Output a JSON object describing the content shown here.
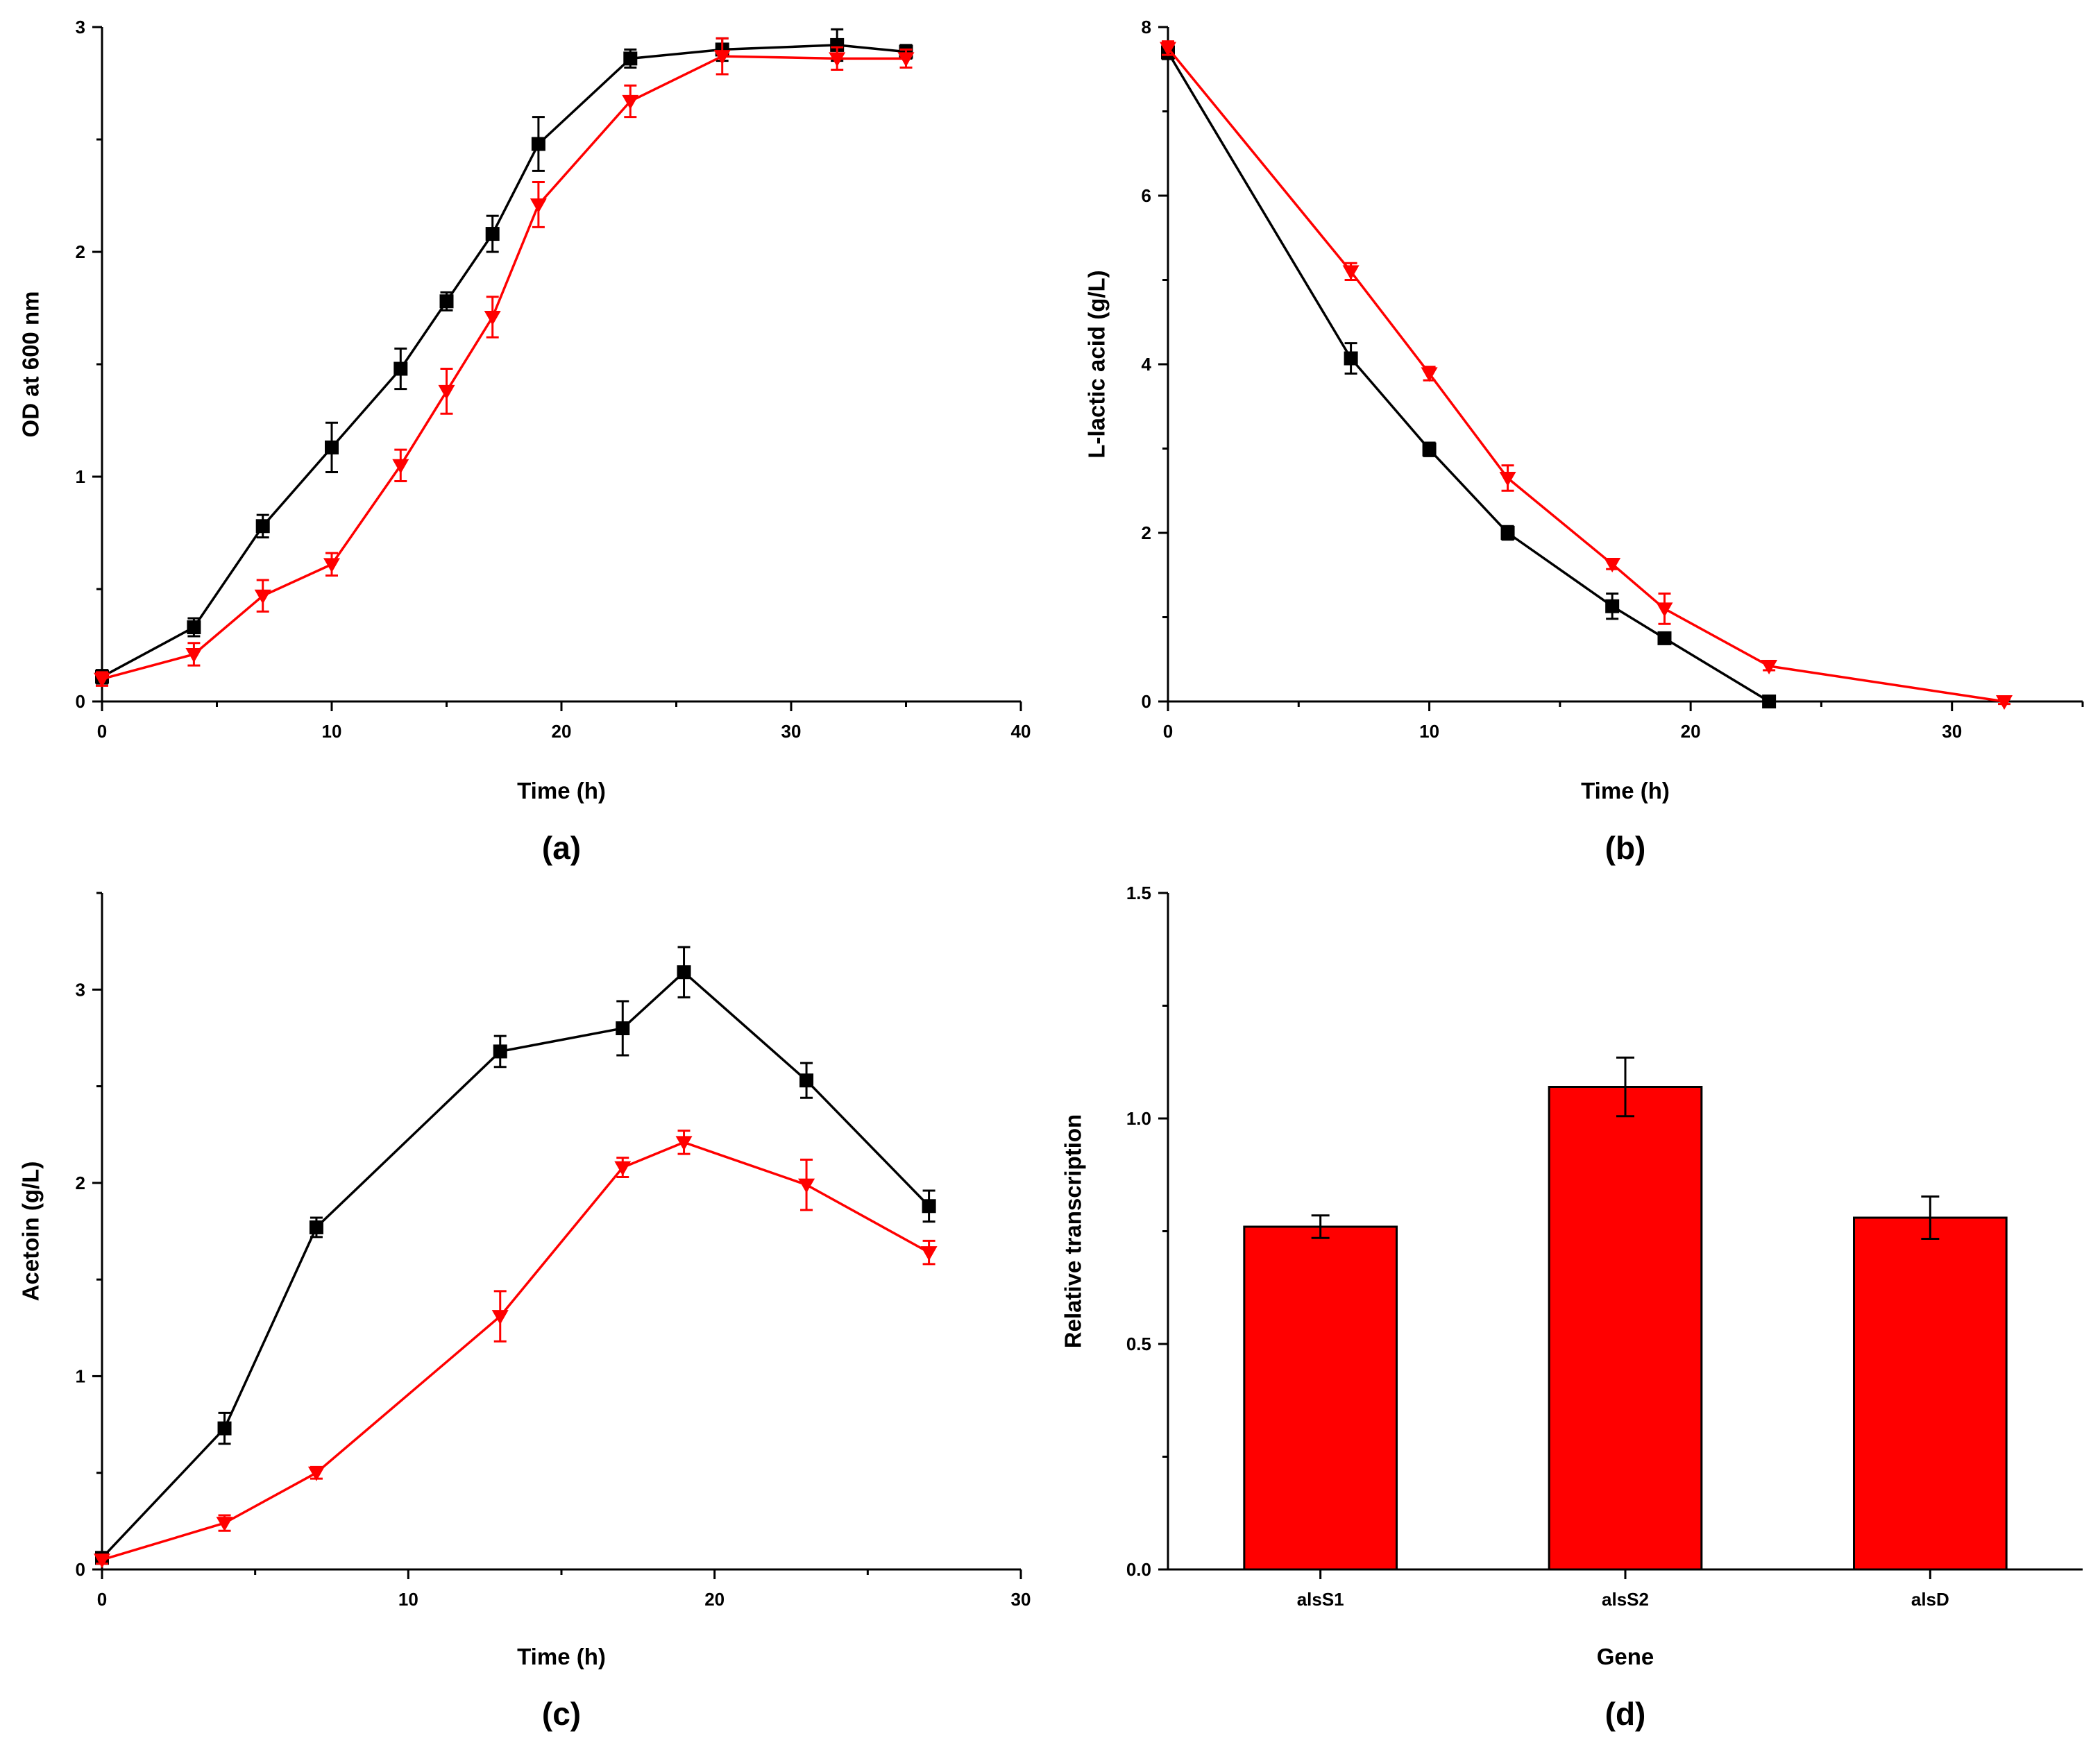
{
  "chart_data": [
    {
      "type": "line",
      "panel_label": "(a)",
      "xlabel": "Time (h)",
      "ylabel": "OD at 600 nm",
      "xlim": [
        0,
        40
      ],
      "ylim": [
        0,
        3
      ],
      "xticks": [
        0,
        10,
        20,
        30,
        40
      ],
      "xtick_labels": [
        "0",
        "10",
        "20",
        "30",
        "40"
      ],
      "xminor_step": 5,
      "yticks": [
        0,
        1,
        2,
        3
      ],
      "ytick_labels": [
        "0",
        "1",
        "2",
        "3"
      ],
      "yminor_step": 0.5,
      "series": [
        {
          "color": "#000000",
          "marker": "square",
          "x": [
            0,
            4,
            7,
            10,
            13,
            15,
            17,
            19,
            23,
            27,
            32,
            35
          ],
          "y": [
            0.11,
            0.33,
            0.78,
            1.13,
            1.48,
            1.78,
            2.08,
            2.48,
            2.86,
            2.9,
            2.92,
            2.89
          ],
          "err": [
            0.03,
            0.04,
            0.05,
            0.11,
            0.09,
            0.04,
            0.08,
            0.12,
            0.04,
            0.05,
            0.07,
            0.03
          ]
        },
        {
          "color": "#ff0000",
          "marker": "triangle-down",
          "x": [
            0,
            4,
            7,
            10,
            13,
            15,
            17,
            19,
            23,
            27,
            32,
            35
          ],
          "y": [
            0.1,
            0.21,
            0.47,
            0.61,
            1.05,
            1.38,
            1.71,
            2.21,
            2.67,
            2.87,
            2.86,
            2.86
          ],
          "err": [
            0.03,
            0.05,
            0.07,
            0.05,
            0.07,
            0.1,
            0.09,
            0.1,
            0.07,
            0.08,
            0.05,
            0.04
          ]
        }
      ]
    },
    {
      "type": "line",
      "panel_label": "(b)",
      "xlabel": "Time (h)",
      "ylabel": "L-lactic acid (g/L)",
      "xlim": [
        0,
        35
      ],
      "ylim": [
        0,
        8
      ],
      "xticks": [
        0,
        10,
        20,
        30
      ],
      "xtick_labels": [
        "0",
        "10",
        "20",
        "30"
      ],
      "xminor_step": 5,
      "yticks": [
        0,
        2,
        4,
        6,
        8
      ],
      "ytick_labels": [
        "0",
        "2",
        "4",
        "6",
        "8"
      ],
      "yminor_step": 1,
      "series": [
        {
          "color": "#000000",
          "marker": "square",
          "x": [
            0,
            7,
            10,
            13,
            17,
            19,
            23
          ],
          "y": [
            7.7,
            4.07,
            2.99,
            2.0,
            1.13,
            0.75,
            0.0
          ],
          "err": [
            0.08,
            0.18,
            0.08,
            0.08,
            0.15,
            0.06,
            0.02
          ]
        },
        {
          "color": "#ff0000",
          "marker": "triangle-down",
          "x": [
            0,
            7,
            10,
            13,
            17,
            19,
            23,
            32
          ],
          "y": [
            7.75,
            5.1,
            3.89,
            2.65,
            1.63,
            1.1,
            0.42,
            0.0
          ],
          "err": [
            0.08,
            0.1,
            0.08,
            0.15,
            0.06,
            0.18,
            0.05,
            0.03
          ]
        }
      ]
    },
    {
      "type": "line",
      "panel_label": "(c)",
      "xlabel": "Time (h)",
      "ylabel": "Acetoin (g/L)",
      "xlim": [
        0,
        30
      ],
      "ylim": [
        0,
        3.5
      ],
      "xticks": [
        0,
        10,
        20,
        30
      ],
      "xtick_labels": [
        "0",
        "10",
        "20",
        "30"
      ],
      "xminor_step": 5,
      "yticks": [
        0,
        1,
        2,
        3
      ],
      "ytick_labels": [
        "0",
        "1",
        "2",
        "3"
      ],
      "yminor_step": 0.5,
      "series": [
        {
          "color": "#000000",
          "marker": "square",
          "x": [
            0,
            4,
            7,
            13,
            17,
            19,
            23,
            27
          ],
          "y": [
            0.06,
            0.73,
            1.77,
            2.68,
            2.8,
            3.09,
            2.53,
            1.88
          ],
          "err": [
            0.02,
            0.08,
            0.05,
            0.08,
            0.14,
            0.13,
            0.09,
            0.08
          ]
        },
        {
          "color": "#ff0000",
          "marker": "triangle-down",
          "x": [
            0,
            4,
            7,
            13,
            17,
            19,
            23,
            27
          ],
          "y": [
            0.05,
            0.24,
            0.5,
            1.31,
            2.08,
            2.21,
            1.99,
            1.64
          ],
          "err": [
            0.02,
            0.04,
            0.03,
            0.13,
            0.05,
            0.06,
            0.13,
            0.06
          ]
        }
      ]
    },
    {
      "type": "bar",
      "panel_label": "(d)",
      "xlabel": "Gene",
      "ylabel": "Relative transcription",
      "categories": [
        "alsS1",
        "alsS2",
        "alsD"
      ],
      "values": [
        0.76,
        1.07,
        0.78
      ],
      "err": [
        0.025,
        0.065,
        0.047
      ],
      "ylim": [
        0,
        1.5
      ],
      "yticks": [
        0,
        0.5,
        1.0,
        1.5
      ],
      "ytick_labels": [
        "0.0",
        "0.5",
        "1.0",
        "1.5"
      ],
      "yminor_step": 0.25,
      "bar_color": "#ff0000",
      "edge_color": "#000000"
    }
  ]
}
